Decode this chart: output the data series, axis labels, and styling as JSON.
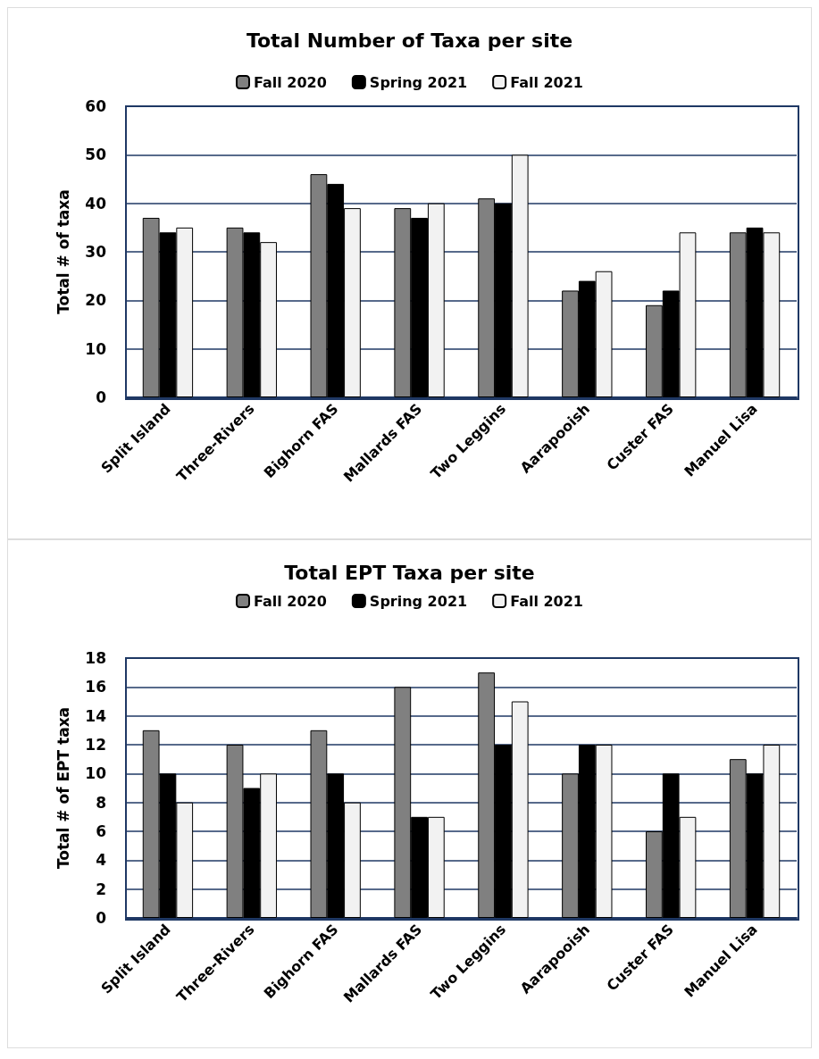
{
  "chart_data": [
    {
      "type": "bar",
      "title": "Total Number of Taxa per site",
      "ylabel": "Total # of taxa",
      "categories": [
        "Split Island",
        "Three-Rivers",
        "Bighorn FAS",
        "Mallards FAS",
        "Two Leggins",
        "Aarapooish",
        "Custer FAS",
        "Manuel Lisa"
      ],
      "series": [
        {
          "name": "Fall 2020",
          "color": "#808080",
          "values": [
            37,
            35,
            46,
            39,
            41,
            22,
            19,
            34
          ]
        },
        {
          "name": "Spring 2021",
          "color": "#000000",
          "values": [
            34,
            34,
            44,
            37,
            40,
            24,
            22,
            35
          ]
        },
        {
          "name": "Fall 2021",
          "color": "#f2f2f2",
          "values": [
            35,
            32,
            39,
            40,
            50,
            26,
            34,
            34
          ]
        }
      ],
      "ylim": [
        0,
        60
      ],
      "yticks": [
        0,
        10,
        20,
        30,
        40,
        50,
        60
      ],
      "grid": "y",
      "legend": "top"
    },
    {
      "type": "bar",
      "title": "Total EPT Taxa per site",
      "ylabel": "Total # of EPT taxa",
      "categories": [
        "Split Island",
        "Three-Rivers",
        "Bighorn FAS",
        "Mallards FAS",
        "Two Leggins",
        "Aarapooish",
        "Custer FAS",
        "Manuel Lisa"
      ],
      "series": [
        {
          "name": "Fall 2020",
          "color": "#808080",
          "values": [
            13,
            12,
            13,
            16,
            17,
            10,
            6,
            11
          ]
        },
        {
          "name": "Spring 2021",
          "color": "#000000",
          "values": [
            10,
            9,
            10,
            7,
            12,
            12,
            10,
            10
          ]
        },
        {
          "name": "Fall 2021",
          "color": "#f2f2f2",
          "values": [
            8,
            10,
            8,
            7,
            15,
            12,
            7,
            12
          ]
        }
      ],
      "ylim": [
        0,
        18
      ],
      "yticks": [
        0,
        2,
        4,
        6,
        8,
        10,
        12,
        14,
        16,
        18
      ],
      "grid": "y",
      "legend": "top"
    }
  ]
}
